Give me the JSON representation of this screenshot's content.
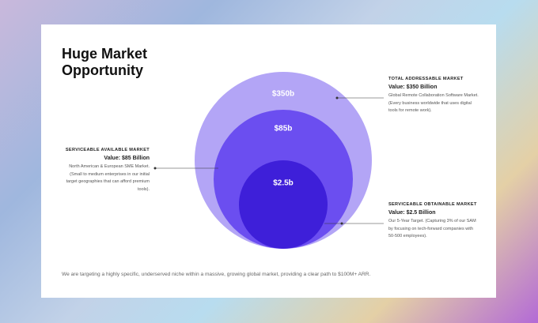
{
  "title": [
    "Huge Market",
    "Opportunity"
  ],
  "circles": [
    {
      "label": "$350b"
    },
    {
      "label": "$85b"
    },
    {
      "label": "$2.5b"
    }
  ],
  "blocks": {
    "tam": {
      "heading": "TOTAL ADDRESSABLE MARKET",
      "value": "Value: $350 Billion",
      "description": "Global Remote Collaboration Software Market. (Every business worldwide that uses digital tools for remote work)."
    },
    "sam": {
      "heading": "SERVICEABLE AVAILABLE MARKET",
      "value": "Value: $85 Billion",
      "description": "North American & European SME Market. (Small to medium enterprises in our initial target geographies that can afford premium tools)."
    },
    "som": {
      "heading": "SERVICEABLE OBTAINABLE MARKET",
      "value": "Value: $2.5 Billion",
      "description": "Our 5-Year Target. (Capturing 3% of our SAM by focusing on tech-forward companies with 50-500 employees)."
    }
  },
  "footer": "We are targeting a highly specific, underserved niche within a massive, growing global market, providing a clear path to $100M+ ARR."
}
